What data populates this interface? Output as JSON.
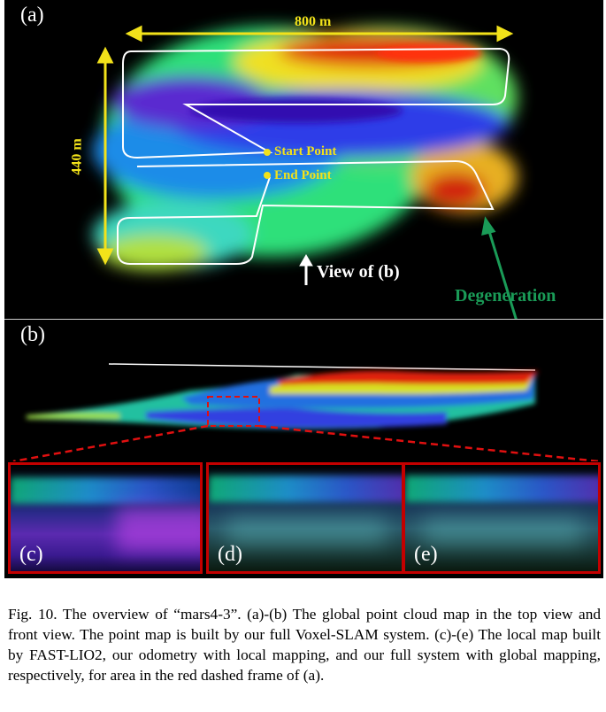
{
  "panels": {
    "a": {
      "label": "(a)",
      "width_label": "800 m",
      "height_label": "440 m",
      "start_label": "Start Point",
      "end_label": "End Point",
      "view_label": "View of (b)"
    },
    "b": {
      "label": "(b)",
      "degeneration_label": "Degeneration"
    },
    "c": {
      "label": "(c)"
    },
    "d": {
      "label": "(d)"
    },
    "e": {
      "label": "(e)"
    }
  },
  "caption": "Fig. 10.  The overview of “mars4-3”. (a)-(b) The global point cloud map in the top view and front view. The point map is built by our full Voxel-SLAM system. (c)-(e) The local map built by FAST-LIO2, our odometry with local mapping, and our full system with global mapping, respectively, for area in the red dashed frame of (a).",
  "colors": {
    "annotation_yellow": "#f2e21a",
    "degeneration_green": "#1a9b57",
    "frame_red": "#c40000"
  }
}
